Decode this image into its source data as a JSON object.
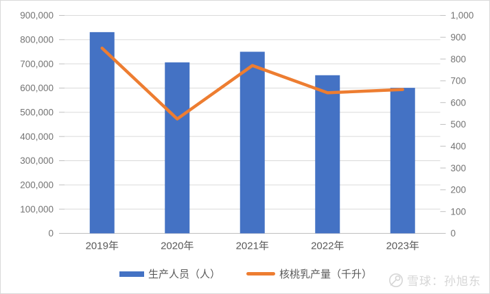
{
  "chart_data": {
    "type": "combo",
    "categories": [
      "2019年",
      "2020年",
      "2021年",
      "2022年",
      "2023年"
    ],
    "series": [
      {
        "name": "生产人员（人）",
        "type": "bar",
        "axis": "left",
        "color": "#4472C4",
        "values": [
          831000,
          706000,
          750000,
          653000,
          601000
        ]
      },
      {
        "name": "核桃乳产量（千升）",
        "type": "line",
        "axis": "right",
        "color": "#ED7D31",
        "values": [
          850,
          525,
          770,
          645,
          660
        ]
      }
    ],
    "title": "",
    "xlabel": "",
    "ylabel_left": "",
    "ylabel_right": "",
    "left_axis": {
      "min": 0,
      "max": 900000,
      "step": 100000,
      "tick_labels": [
        "0",
        "100,000",
        "200,000",
        "300,000",
        "400,000",
        "500,000",
        "600,000",
        "700,000",
        "800,000",
        "900,000"
      ]
    },
    "right_axis": {
      "min": 0,
      "max": 1000,
      "step": 100,
      "tick_labels": [
        "0",
        "100",
        "200",
        "300",
        "400",
        "500",
        "600",
        "700",
        "800",
        "900",
        "1,000"
      ]
    },
    "grid": true,
    "legend_position": "bottom"
  },
  "legend": {
    "items": [
      {
        "label": "生产人员（人）",
        "swatch": "bar"
      },
      {
        "label": "核桃乳产量（千升）",
        "swatch": "line"
      }
    ]
  },
  "watermark": {
    "logo_icon": "xueqiu-logo-icon",
    "text": "雪球：孙旭东"
  },
  "colors": {
    "bar": "#4472C4",
    "line": "#ED7D31",
    "gridline": "#D9D9D9",
    "axis_line": "#BFBFBF",
    "tick_text": "#737373",
    "category_text": "#595959",
    "watermark_text": "#D6D6D6",
    "border": "#D9D9D9",
    "background": "#FFFFFF"
  }
}
